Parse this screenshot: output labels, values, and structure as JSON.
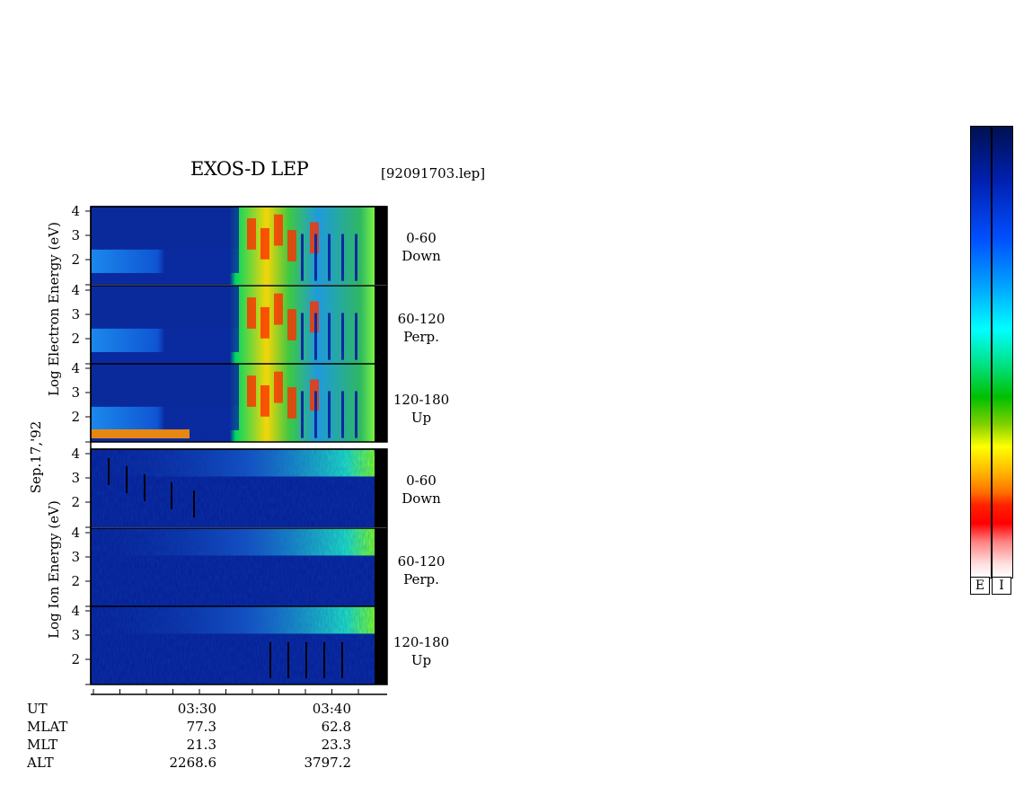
{
  "title": "EXOS-D LEP",
  "file_label": "[92091703.lep]",
  "date_label": "Sep.17,'92",
  "electron_ylabel": "Log  Electron  Energy (eV)",
  "ion_ylabel": "Log  Ion  Energy (eV)",
  "panels": [
    {
      "range": "0-60",
      "dir": "Down"
    },
    {
      "range": "60-120",
      "dir": "Perp."
    },
    {
      "range": "120-180",
      "dir": "Up"
    },
    {
      "range": "0-60",
      "dir": "Down"
    },
    {
      "range": "60-120",
      "dir": "Perp."
    },
    {
      "range": "120-180",
      "dir": "Up"
    }
  ],
  "info_rows": [
    {
      "label": "UT",
      "v1": "03:30",
      "v2": "03:40"
    },
    {
      "label": "MLAT",
      "v1": "77.3",
      "v2": "62.8"
    },
    {
      "label": "MLT",
      "v1": "21.3",
      "v2": "23.3"
    },
    {
      "label": "ALT",
      "v1": "2268.6",
      "v2": "3797.2"
    }
  ],
  "colorbar_labels": [
    "E",
    "I"
  ],
  "chart_data": {
    "type": "heatmap",
    "title": "EXOS-D LEP",
    "x_ticks": [
      "03:30",
      "03:40"
    ],
    "y_ticks": [
      "2",
      "3",
      "4"
    ],
    "panels": 6,
    "colormap": [
      "#ffffff",
      "#ff0000",
      "#ff8000",
      "#ffff00",
      "#00c800",
      "#00ffff",
      "#0060ff",
      "#0000a0"
    ],
    "background_color": "#0a1e96"
  }
}
